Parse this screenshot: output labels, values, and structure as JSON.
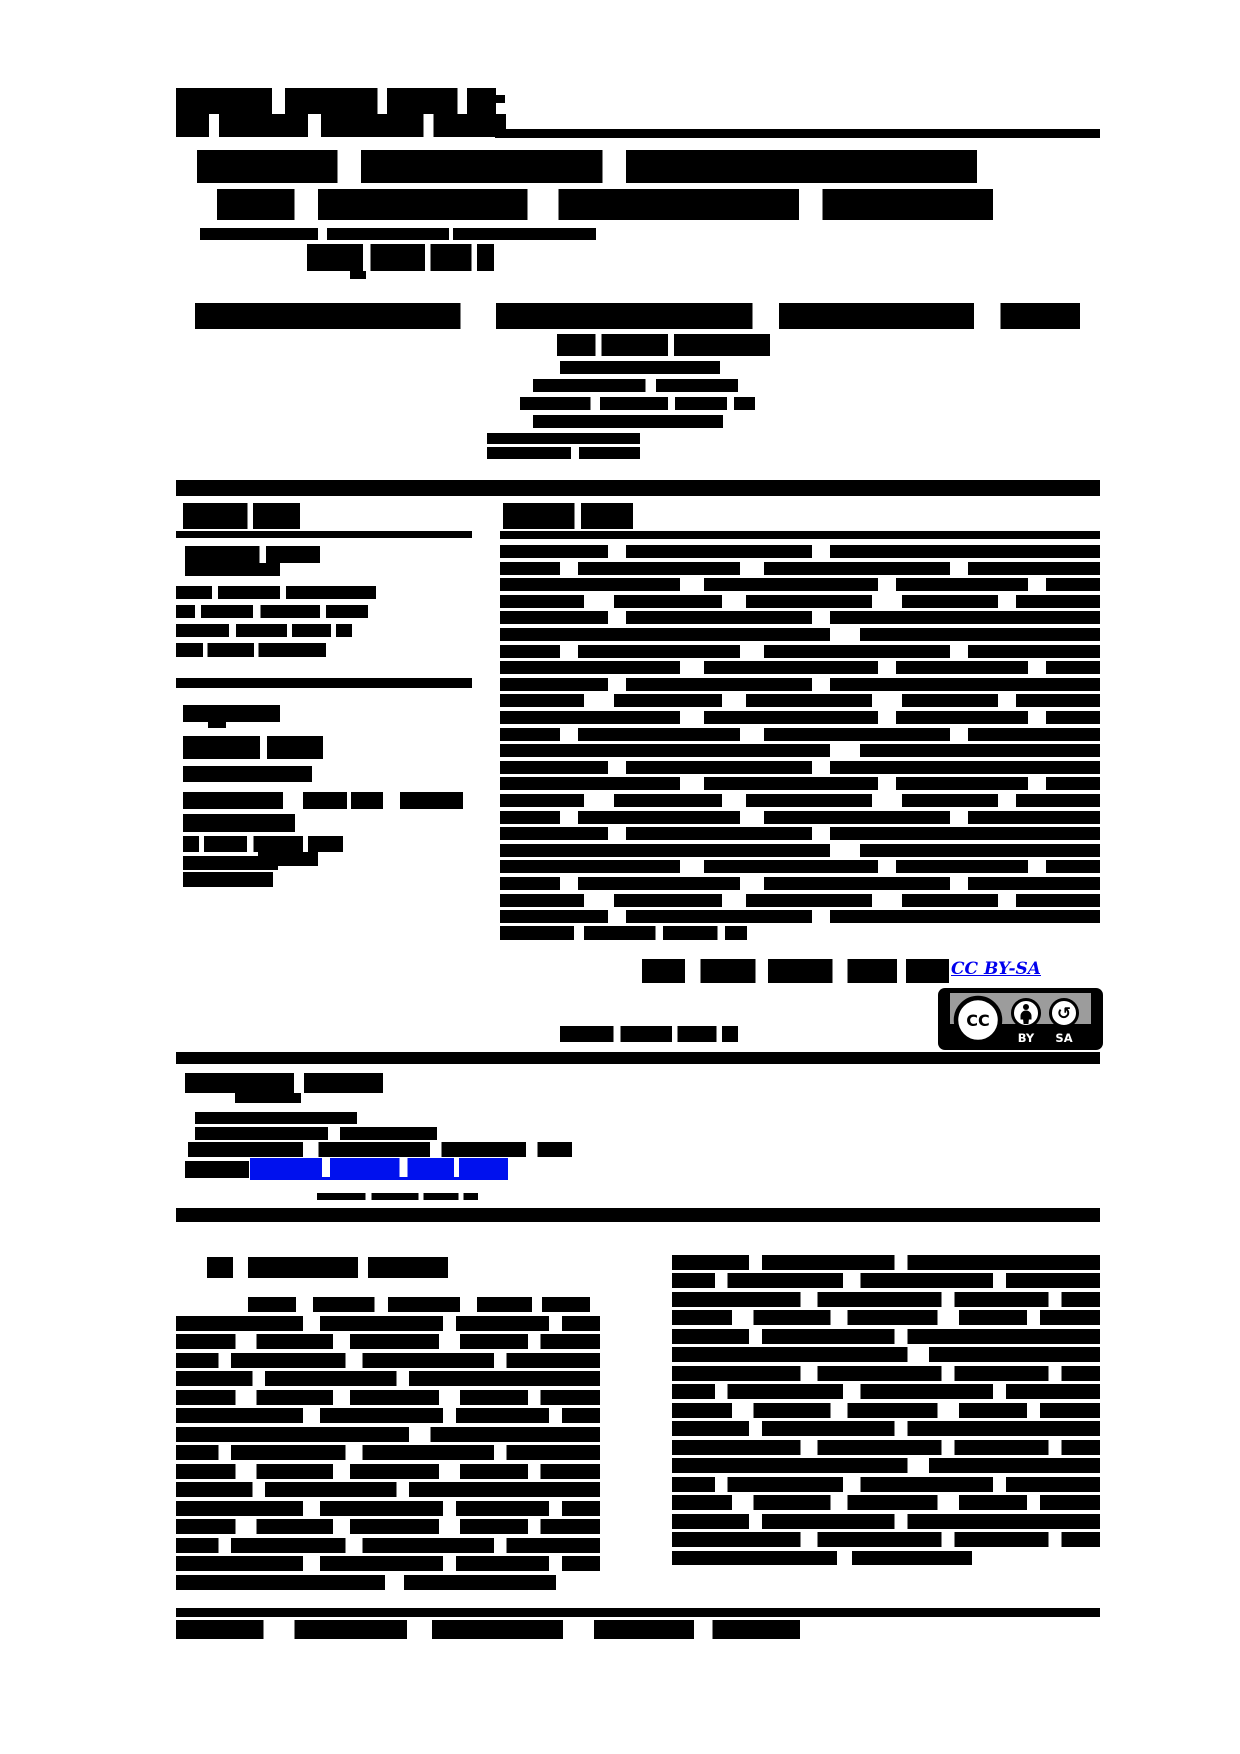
{
  "page": {
    "kind": "scanned academic article page, text binarized and illegible (rendered as black blocks)",
    "background": "#ffffff",
    "ink": "#000000",
    "link_color": "#0000ee"
  },
  "license": {
    "link_label": "CC BY-SA",
    "badge": {
      "cc_label": "CC",
      "by_label": "BY",
      "sa_label": "SA",
      "badge_bg": "#000000",
      "panel_color": "#9c9c9c",
      "icon_fill": "#ffffff",
      "label_color": "#ffffff"
    }
  },
  "redactions": [
    {
      "name": "journal-logo",
      "bars": [
        [
          176,
          88,
          320,
          28,
          2
        ],
        [
          176,
          114,
          330,
          23,
          3
        ],
        [
          495,
          95,
          10,
          8,
          0
        ]
      ]
    },
    {
      "name": "header-rule",
      "bars": [
        [
          495,
          129,
          605,
          9,
          0
        ]
      ]
    },
    {
      "name": "article-title",
      "bars": [
        [
          197,
          150,
          780,
          33,
          1
        ],
        [
          217,
          189,
          776,
          31,
          3
        ],
        [
          200,
          228,
          118,
          12,
          0
        ],
        [
          327,
          228,
          122,
          12,
          0
        ],
        [
          453,
          228,
          143,
          12,
          0
        ],
        [
          307,
          244,
          187,
          27,
          2
        ],
        [
          350,
          271,
          16,
          8,
          0
        ]
      ]
    },
    {
      "name": "authors",
      "bars": [
        [
          195,
          303,
          885,
          26,
          2
        ]
      ]
    },
    {
      "name": "affiliations",
      "bars": [
        [
          557,
          334,
          213,
          22,
          1
        ],
        [
          560,
          361,
          160,
          13,
          0
        ],
        [
          533,
          379,
          205,
          13,
          4
        ],
        [
          520,
          397,
          235,
          13,
          2
        ],
        [
          533,
          415,
          190,
          13,
          0
        ],
        [
          487,
          433,
          153,
          11,
          0
        ],
        [
          487,
          447,
          153,
          12,
          4
        ]
      ]
    },
    {
      "name": "section-rule-top",
      "bars": [
        [
          176,
          480,
          924,
          16,
          0
        ]
      ]
    },
    {
      "name": "article-info-heading",
      "bars": [
        [
          183,
          503,
          117,
          26,
          4
        ]
      ]
    },
    {
      "name": "article-info-rule",
      "bars": [
        [
          176,
          531,
          296,
          7,
          0
        ]
      ]
    },
    {
      "name": "article-history",
      "bars": [
        [
          185,
          546,
          135,
          17,
          4
        ],
        [
          185,
          563,
          95,
          13,
          0
        ]
      ]
    },
    {
      "name": "article-history-dates",
      "bars": [
        [
          176,
          586,
          200,
          13,
          1
        ],
        [
          176,
          605,
          192,
          13,
          3
        ],
        [
          176,
          624,
          176,
          13,
          2
        ],
        [
          176,
          643,
          150,
          14,
          1
        ]
      ]
    },
    {
      "name": "article-info-divider",
      "bars": [
        [
          176,
          678,
          296,
          10,
          0
        ]
      ]
    },
    {
      "name": "keywords-heading",
      "bars": [
        [
          183,
          705,
          97,
          17,
          0
        ],
        [
          208,
          722,
          18,
          6,
          0
        ]
      ]
    },
    {
      "name": "keywords-list",
      "bars": [
        [
          183,
          736,
          140,
          23,
          4
        ],
        [
          183,
          766,
          129,
          16,
          0
        ],
        [
          183,
          792,
          100,
          17,
          0
        ],
        [
          303,
          792,
          80,
          17,
          4
        ],
        [
          400,
          792,
          63,
          17,
          0
        ],
        [
          183,
          814,
          112,
          18,
          0
        ],
        [
          183,
          836,
          160,
          16,
          3
        ],
        [
          258,
          852,
          60,
          14,
          0
        ],
        [
          183,
          856,
          95,
          14,
          0
        ],
        [
          183,
          872,
          90,
          15,
          0
        ]
      ]
    },
    {
      "name": "abstract-heading",
      "bars": [
        [
          503,
          503,
          130,
          26,
          4
        ]
      ]
    },
    {
      "name": "abstract-rule",
      "bars": [
        [
          500,
          531,
          600,
          8,
          0
        ]
      ]
    },
    {
      "name": "abstract-body",
      "bars": [
        [
          500,
          545,
          600,
          13,
          1
        ],
        [
          500,
          562,
          600,
          13,
          3
        ],
        [
          500,
          578,
          600,
          13,
          2
        ],
        [
          500,
          595,
          600,
          13,
          5
        ],
        [
          500,
          611,
          600,
          13,
          1
        ],
        [
          500,
          628,
          600,
          13,
          4
        ],
        [
          500,
          645,
          600,
          13,
          3
        ],
        [
          500,
          661,
          600,
          13,
          2
        ],
        [
          500,
          678,
          600,
          13,
          1
        ],
        [
          500,
          694,
          600,
          13,
          5
        ],
        [
          500,
          711,
          600,
          13,
          2
        ],
        [
          500,
          728,
          600,
          13,
          3
        ],
        [
          500,
          744,
          600,
          13,
          4
        ],
        [
          500,
          761,
          600,
          13,
          1
        ],
        [
          500,
          777,
          600,
          13,
          2
        ],
        [
          500,
          794,
          600,
          13,
          5
        ],
        [
          500,
          811,
          600,
          13,
          3
        ],
        [
          500,
          827,
          600,
          13,
          1
        ],
        [
          500,
          844,
          600,
          13,
          4
        ],
        [
          500,
          860,
          600,
          13,
          2
        ],
        [
          500,
          877,
          600,
          13,
          3
        ],
        [
          500,
          894,
          600,
          13,
          5
        ],
        [
          500,
          910,
          600,
          13,
          1
        ],
        [
          500,
          926,
          247,
          14,
          2
        ]
      ]
    },
    {
      "name": "open-access-statement",
      "bars": [
        [
          642,
          959,
          307,
          24,
          5
        ],
        [
          560,
          1026,
          178,
          16,
          2
        ]
      ]
    },
    {
      "name": "info-section-bottom-rule",
      "bars": [
        [
          176,
          1052,
          924,
          12,
          0
        ]
      ]
    },
    {
      "name": "corresponding-author-heading",
      "bars": [
        [
          185,
          1073,
          198,
          20,
          4
        ],
        [
          235,
          1093,
          66,
          10,
          0
        ]
      ]
    },
    {
      "name": "corresponding-author-details",
      "bars": [
        [
          195,
          1112,
          162,
          12,
          0
        ],
        [
          195,
          1127,
          242,
          13,
          4
        ],
        [
          188,
          1142,
          384,
          15,
          2
        ],
        [
          185,
          1161,
          64,
          17,
          0
        ],
        [
          317,
          1193,
          161,
          7,
          2
        ]
      ]
    },
    {
      "name": "body-section-rule",
      "bars": [
        [
          176,
          1208,
          924,
          14,
          0
        ]
      ]
    },
    {
      "name": "introduction-heading",
      "bars": [
        [
          207,
          1257,
          26,
          21,
          0
        ],
        [
          248,
          1257,
          200,
          21,
          4
        ]
      ]
    },
    {
      "name": "introduction-left-column",
      "bars": [
        [
          248,
          1297,
          342,
          15,
          5
        ],
        [
          176,
          1316,
          424,
          15,
          2
        ],
        [
          176,
          1334,
          424,
          15,
          5
        ],
        [
          176,
          1353,
          424,
          15,
          3
        ],
        [
          176,
          1371,
          424,
          15,
          1
        ],
        [
          176,
          1390,
          424,
          15,
          5
        ],
        [
          176,
          1408,
          424,
          15,
          2
        ],
        [
          176,
          1427,
          424,
          15,
          4
        ],
        [
          176,
          1445,
          424,
          15,
          3
        ],
        [
          176,
          1464,
          424,
          15,
          5
        ],
        [
          176,
          1482,
          424,
          15,
          1
        ],
        [
          176,
          1501,
          424,
          15,
          2
        ],
        [
          176,
          1519,
          424,
          15,
          5
        ],
        [
          176,
          1538,
          424,
          15,
          3
        ],
        [
          176,
          1556,
          424,
          15,
          2
        ],
        [
          176,
          1575,
          380,
          15,
          4
        ]
      ]
    },
    {
      "name": "introduction-right-column",
      "bars": [
        [
          672,
          1255,
          428,
          15,
          1
        ],
        [
          672,
          1273,
          428,
          15,
          3
        ],
        [
          672,
          1292,
          428,
          15,
          2
        ],
        [
          672,
          1310,
          428,
          15,
          5
        ],
        [
          672,
          1329,
          428,
          15,
          1
        ],
        [
          672,
          1347,
          428,
          15,
          4
        ],
        [
          672,
          1366,
          428,
          15,
          2
        ],
        [
          672,
          1384,
          428,
          15,
          3
        ],
        [
          672,
          1403,
          428,
          15,
          5
        ],
        [
          672,
          1421,
          428,
          15,
          1
        ],
        [
          672,
          1440,
          428,
          15,
          2
        ],
        [
          672,
          1458,
          428,
          15,
          4
        ],
        [
          672,
          1477,
          428,
          15,
          3
        ],
        [
          672,
          1495,
          428,
          15,
          5
        ],
        [
          672,
          1514,
          428,
          15,
          1
        ],
        [
          672,
          1532,
          428,
          15,
          2
        ],
        [
          672,
          1551,
          300,
          14,
          4
        ]
      ]
    },
    {
      "name": "footer-rule",
      "bars": [
        [
          176,
          1608,
          924,
          9,
          0
        ]
      ]
    },
    {
      "name": "footer-text",
      "bars": [
        [
          176,
          1620,
          624,
          19,
          5
        ],
        [
          778,
          1624,
          22,
          13,
          0
        ]
      ]
    }
  ]
}
